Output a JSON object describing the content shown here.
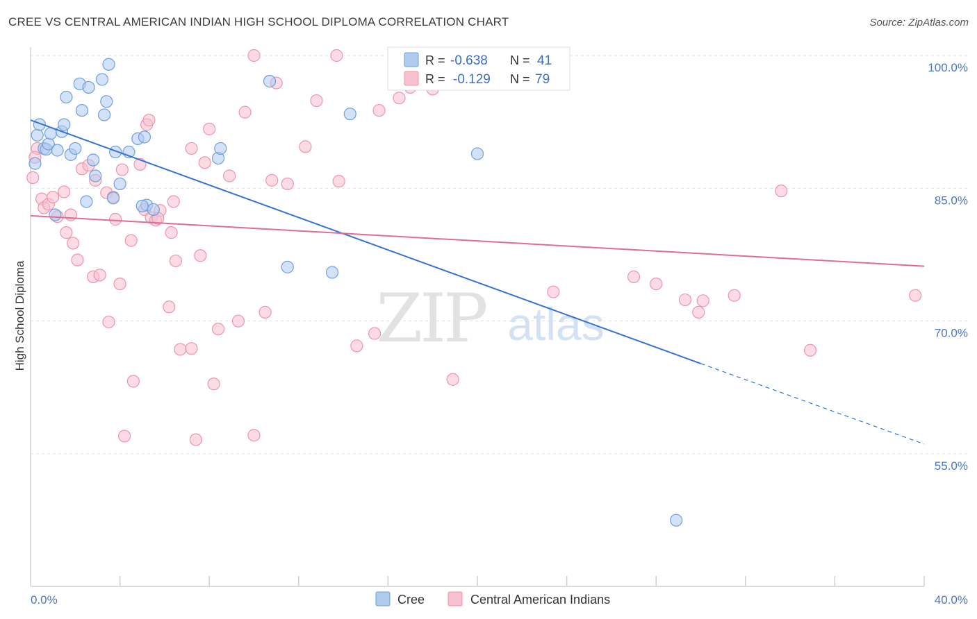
{
  "title": "CREE VS CENTRAL AMERICAN INDIAN HIGH SCHOOL DIPLOMA CORRELATION CHART",
  "source": "Source: ZipAtlas.com",
  "watermark": {
    "zip": "ZIP",
    "atlas": "atlas"
  },
  "colors": {
    "cree_fill": "#aecbf0",
    "cree_stroke": "#6f9fdc",
    "cree_line": "#3373d0",
    "cai_fill": "#f7c0cf",
    "cai_stroke": "#ee94ad",
    "cai_line": "#e06c94",
    "grid": "#e3e3e3",
    "tick_label": "#4a78c2"
  },
  "legend": {
    "rows": [
      {
        "r_label": "R =",
        "r_value": "-0.638",
        "n_label": "N =",
        "n_value": "41"
      },
      {
        "r_label": "R =",
        "r_value": "-0.129",
        "n_label": "N =",
        "n_value": "79"
      }
    ]
  },
  "bottom_legend": {
    "cree": "Cree",
    "cai": "Central American Indians"
  },
  "chart_data": {
    "type": "scatter",
    "title": "CREE VS CENTRAL AMERICAN INDIAN HIGH SCHOOL DIPLOMA CORRELATION CHART",
    "xlabel": "",
    "ylabel": "High School Diploma",
    "xlim": [
      0,
      40
    ],
    "ylim": [
      42,
      102
    ],
    "x_tick_labels": {
      "left": "0.0%",
      "right": "40.0%"
    },
    "y_ticks": [
      100,
      85,
      70,
      55
    ],
    "y_tick_labels": [
      "100.0%",
      "85.0%",
      "70.0%",
      "55.0%"
    ],
    "series": [
      {
        "name": "Cree",
        "r": -0.638,
        "n": 41,
        "trend": {
          "x0": 0,
          "y0": 92.7,
          "x1": 30.0,
          "y1": 65.2,
          "dash_to_x": 40.0,
          "dash_to_y": 56.1
        },
        "points": [
          [
            0.2,
            87.8
          ],
          [
            0.3,
            91.0
          ],
          [
            0.4,
            92.2
          ],
          [
            0.6,
            89.5
          ],
          [
            0.7,
            89.4
          ],
          [
            0.8,
            90.0
          ],
          [
            0.9,
            91.2
          ],
          [
            1.2,
            89.3
          ],
          [
            1.4,
            91.4
          ],
          [
            1.5,
            92.2
          ],
          [
            1.6,
            95.3
          ],
          [
            1.8,
            88.8
          ],
          [
            2.0,
            89.5
          ],
          [
            2.2,
            96.8
          ],
          [
            2.3,
            93.8
          ],
          [
            2.6,
            96.4
          ],
          [
            2.8,
            88.2
          ],
          [
            2.9,
            86.4
          ],
          [
            3.2,
            97.3
          ],
          [
            3.3,
            93.3
          ],
          [
            3.4,
            94.8
          ],
          [
            3.5,
            99.0
          ],
          [
            3.8,
            89.1
          ],
          [
            4.0,
            85.5
          ],
          [
            4.4,
            89.1
          ],
          [
            4.8,
            90.6
          ],
          [
            5.1,
            90.8
          ],
          [
            5.2,
            83.1
          ],
          [
            5.5,
            82.6
          ],
          [
            2.5,
            83.5
          ],
          [
            1.1,
            82.0
          ],
          [
            3.7,
            83.9
          ],
          [
            8.4,
            88.4
          ],
          [
            8.5,
            89.5
          ],
          [
            10.7,
            97.1
          ],
          [
            11.5,
            76.1
          ],
          [
            13.5,
            75.5
          ],
          [
            14.3,
            93.4
          ],
          [
            20.0,
            88.9
          ],
          [
            28.9,
            47.5
          ],
          [
            5.0,
            83.0
          ]
        ]
      },
      {
        "name": "Central American Indians",
        "r": -0.129,
        "n": 79,
        "trend": {
          "x0": 0,
          "y0": 81.9,
          "x1": 40.0,
          "y1": 76.2
        },
        "points": [
          [
            0.1,
            86.2
          ],
          [
            0.3,
            89.5
          ],
          [
            0.5,
            83.8
          ],
          [
            0.6,
            82.8
          ],
          [
            0.8,
            83.2
          ],
          [
            1.0,
            84.0
          ],
          [
            1.2,
            81.8
          ],
          [
            1.5,
            84.6
          ],
          [
            1.6,
            80.0
          ],
          [
            1.8,
            82.0
          ],
          [
            1.9,
            78.8
          ],
          [
            2.1,
            76.9
          ],
          [
            2.3,
            87.2
          ],
          [
            2.6,
            87.6
          ],
          [
            2.8,
            75.0
          ],
          [
            2.9,
            85.9
          ],
          [
            3.1,
            75.2
          ],
          [
            3.4,
            84.5
          ],
          [
            3.5,
            69.9
          ],
          [
            3.7,
            84.0
          ],
          [
            3.8,
            81.5
          ],
          [
            4.0,
            74.2
          ],
          [
            4.1,
            87.1
          ],
          [
            4.2,
            57.0
          ],
          [
            4.5,
            79.1
          ],
          [
            4.6,
            63.2
          ],
          [
            4.9,
            87.7
          ],
          [
            5.1,
            82.6
          ],
          [
            5.2,
            92.2
          ],
          [
            5.3,
            92.7
          ],
          [
            5.4,
            81.7
          ],
          [
            5.6,
            81.4
          ],
          [
            5.8,
            82.5
          ],
          [
            6.2,
            71.6
          ],
          [
            6.3,
            80.0
          ],
          [
            6.4,
            83.5
          ],
          [
            6.5,
            76.8
          ],
          [
            6.7,
            66.8
          ],
          [
            7.2,
            66.9
          ],
          [
            7.2,
            89.5
          ],
          [
            7.4,
            56.6
          ],
          [
            7.6,
            77.4
          ],
          [
            7.8,
            87.9
          ],
          [
            8.0,
            91.7
          ],
          [
            8.2,
            62.9
          ],
          [
            8.4,
            69.1
          ],
          [
            8.9,
            86.4
          ],
          [
            9.3,
            70.0
          ],
          [
            9.6,
            93.6
          ],
          [
            10.0,
            100.0
          ],
          [
            10.0,
            57.1
          ],
          [
            10.5,
            71.0
          ],
          [
            10.8,
            85.9
          ],
          [
            11.0,
            96.9
          ],
          [
            11.5,
            85.5
          ],
          [
            12.3,
            89.7
          ],
          [
            12.8,
            94.9
          ],
          [
            13.7,
            100.0
          ],
          [
            13.8,
            85.8
          ],
          [
            14.6,
            67.2
          ],
          [
            15.4,
            68.6
          ],
          [
            15.6,
            93.8
          ],
          [
            16.5,
            95.2
          ],
          [
            17.0,
            96.4
          ],
          [
            18.0,
            96.2
          ],
          [
            18.9,
            63.4
          ],
          [
            22.7,
            100.0
          ],
          [
            23.4,
            73.3
          ],
          [
            27.0,
            75.0
          ],
          [
            28.0,
            74.2
          ],
          [
            29.3,
            72.4
          ],
          [
            29.9,
            71.0
          ],
          [
            30.1,
            72.3
          ],
          [
            31.5,
            72.9
          ],
          [
            33.6,
            84.7
          ],
          [
            34.9,
            66.7
          ],
          [
            39.6,
            72.9
          ],
          [
            0.2,
            88.5
          ],
          [
            5.7,
            81.6
          ]
        ]
      }
    ]
  }
}
